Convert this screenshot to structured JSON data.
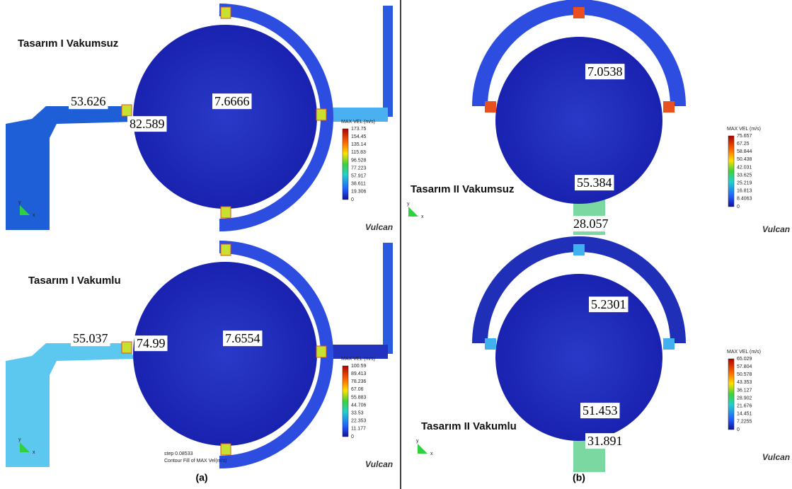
{
  "panels": [
    {
      "title": "Tasarım I Vakumsuz",
      "labels": [
        "53.626",
        "82.589",
        "7.6666"
      ],
      "legend": {
        "title": "MAX VEL (m/s)",
        "ticks": [
          "173.75",
          "154.45",
          "135.14",
          "115.83",
          "96.528",
          "77.223",
          "57.917",
          "38.611",
          "19.306",
          "0"
        ]
      },
      "triad": [
        "y",
        "x"
      ]
    },
    {
      "title": "Tasarım I Vakumlu",
      "labels": [
        "55.037",
        "74.99",
        "7.6554"
      ],
      "legend": {
        "title": "MAX VEL (m/s)",
        "ticks": [
          "100.59",
          "89.413",
          "78.236",
          "67.06",
          "55.883",
          "44.706",
          "33.53",
          "22.353",
          "11.177",
          "0"
        ]
      },
      "triad": [
        "y",
        "x"
      ],
      "notes": [
        "step 0.08533",
        "Contour Fill of MAX Vel(m/s)"
      ]
    },
    {
      "title": "Tasarım II Vakumsuz",
      "labels": [
        "7.0538",
        "55.384",
        "28.057"
      ],
      "legend": {
        "title": "MAX VEL (m/s)",
        "ticks": [
          "75.657",
          "67.25",
          "58.844",
          "50.438",
          "42.031",
          "33.625",
          "25.219",
          "16.813",
          "8.4063",
          "0"
        ]
      },
      "triad": [
        "y",
        "x"
      ]
    },
    {
      "title": "Tasarım II Vakumlu",
      "labels": [
        "5.2301",
        "51.453",
        "31.891"
      ],
      "legend": {
        "title": "MAX VEL (m/s)",
        "ticks": [
          "65.029",
          "57.804",
          "50.578",
          "43.353",
          "36.127",
          "28.902",
          "21.676",
          "14.451",
          "7.2255",
          "0"
        ]
      },
      "triad": [
        "y",
        "x"
      ]
    }
  ],
  "logo": "Vulcan",
  "captions": [
    "(a)",
    "(b)"
  ]
}
